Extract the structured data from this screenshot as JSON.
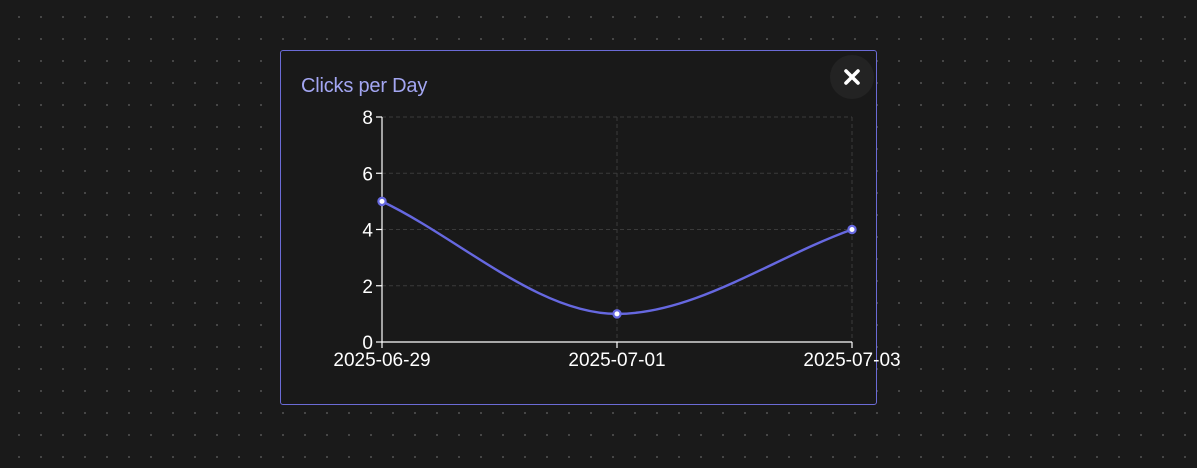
{
  "card": {
    "title": "Clicks per Day"
  },
  "colors": {
    "accent": "#6b6bd6",
    "line": "#6668e0",
    "title": "#a3a6f2",
    "axis": "#ffffff",
    "grid": "#3a3a3a"
  },
  "icons": {
    "close": "close-icon"
  },
  "chart_data": {
    "type": "line",
    "title": "Clicks per Day",
    "xlabel": "",
    "ylabel": "",
    "x": [
      "2025-06-29",
      "2025-07-01",
      "2025-07-03"
    ],
    "values": [
      5,
      1,
      4
    ],
    "ylim": [
      0,
      8
    ],
    "yticks": [
      0,
      2,
      4,
      6,
      8
    ],
    "curve": "smooth",
    "markers": true,
    "grid": "dashed",
    "legend": "none"
  }
}
